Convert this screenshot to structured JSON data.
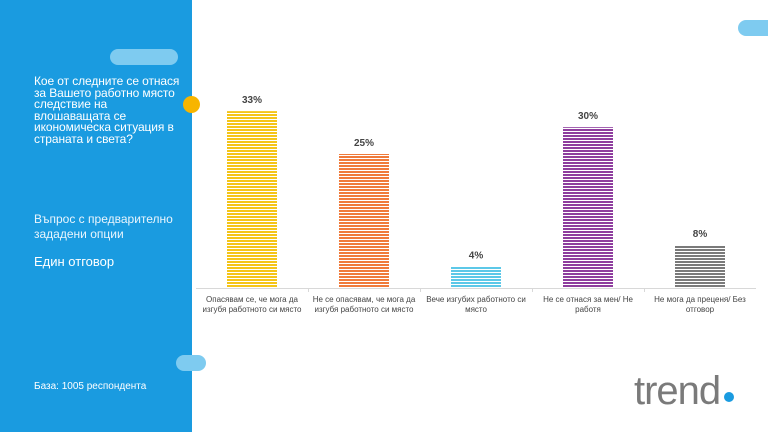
{
  "panel": {
    "question": "Кое от следните се отнася за Вашето работно място следствие на влошаващата се икономическа ситуация в страната и света?",
    "note": "Въпрос с предварително зададени опции",
    "answer_type": "Един отговор",
    "base": "База: 1005 респондента"
  },
  "logo": {
    "text": "trend"
  },
  "colors": {
    "panel": "#1a9be0",
    "accent_dot": "#f7b500",
    "bar_stripe_bg": "#ffffff"
  },
  "chart_data": {
    "type": "bar",
    "categories": [
      "Опасявам се, че мога да изгубя работното си място",
      "Не се опасявам, че мога да изгубя работното си място",
      "Вече изгубих работното си място",
      "Не се отнася за мен/ Не работя",
      "Не мога да преценя/ Без отговор"
    ],
    "values": [
      33,
      25,
      4,
      30,
      8
    ],
    "value_labels": [
      "33%",
      "25%",
      "4%",
      "30%",
      "8%"
    ],
    "bar_colors": [
      "#f5c518",
      "#f07a3a",
      "#5cc8e8",
      "#8e3d9e",
      "#7a7a7a"
    ],
    "ylim": [
      0,
      35
    ],
    "grid": false,
    "legend": false
  }
}
